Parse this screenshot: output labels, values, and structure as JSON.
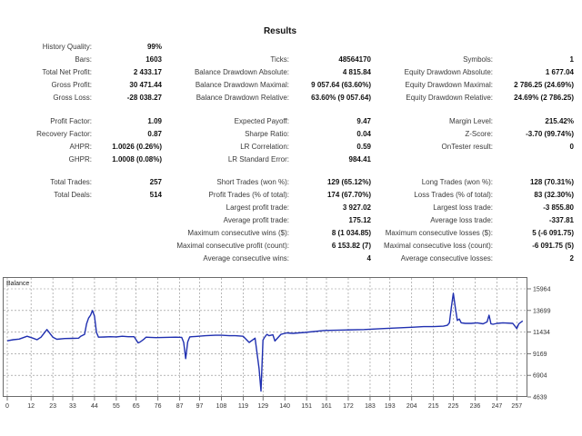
{
  "report": {
    "title": "Results",
    "rows": [
      {
        "label1": "History Quality:",
        "value1": "99%",
        "label2": "",
        "value2": "",
        "label3": "",
        "value3": ""
      },
      {
        "label1": "Bars:",
        "value1": "1603",
        "label2": "Ticks:",
        "value2": "48564170",
        "label3": "Symbols:",
        "value3": "1"
      },
      {
        "label1": "Total Net Profit:",
        "value1": "2 433.17",
        "label2": "Balance Drawdown Absolute:",
        "value2": "4 815.84",
        "label3": "Equity Drawdown Absolute:",
        "value3": "1 677.04"
      },
      {
        "label1": "Gross Profit:",
        "value1": "30 471.44",
        "label2": "Balance Drawdown Maximal:",
        "value2": "9 057.64 (63.60%)",
        "label3": "Equity Drawdown Maximal:",
        "value3": "2 786.25 (24.69%)"
      },
      {
        "label1": "Gross Loss:",
        "value1": "-28 038.27",
        "label2": "Balance Drawdown Relative:",
        "value2": "63.60% (9 057.64)",
        "label3": "Equity Drawdown Relative:",
        "value3": "24.69% (2 786.25)"
      },
      {
        "label1": "Profit Factor:",
        "value1": "1.09",
        "label2": "Expected Payoff:",
        "value2": "9.47",
        "label3": "Margin Level:",
        "value3": "215.42%"
      },
      {
        "label1": "Recovery Factor:",
        "value1": "0.87",
        "label2": "Sharpe Ratio:",
        "value2": "0.04",
        "label3": "Z-Score:",
        "value3": "-3.70 (99.74%)"
      },
      {
        "label1": "AHPR:",
        "value1": "1.0026 (0.26%)",
        "label2": "LR Correlation:",
        "value2": "0.59",
        "label3": "OnTester result:",
        "value3": "0"
      },
      {
        "label1": "GHPR:",
        "value1": "1.0008 (0.08%)",
        "label2": "LR Standard Error:",
        "value2": "984.41",
        "label3": "",
        "value3": ""
      },
      {
        "label1": "Total Trades:",
        "value1": "257",
        "label2": "Short Trades (won %):",
        "value2": "129 (65.12%)",
        "label3": "Long Trades (won %):",
        "value3": "128 (70.31%)"
      },
      {
        "label1": "Total Deals:",
        "value1": "514",
        "label2": "Profit Trades (% of total):",
        "value2": "174 (67.70%)",
        "label3": "Loss Trades (% of total):",
        "value3": "83 (32.30%)"
      },
      {
        "label1": "",
        "value1": "",
        "label2": "Largest profit trade:",
        "value2": "3 927.02",
        "label3": "Largest loss trade:",
        "value3": "-3 855.80"
      },
      {
        "label1": "",
        "value1": "",
        "label2": "Average profit trade:",
        "value2": "175.12",
        "label3": "Average loss trade:",
        "value3": "-337.81"
      },
      {
        "label1": "",
        "value1": "",
        "label2": "Maximum consecutive wins ($):",
        "value2": "8 (1 034.85)",
        "label3": "Maximum consecutive losses ($):",
        "value3": "5 (-6 091.75)"
      },
      {
        "label1": "",
        "value1": "",
        "label2": "Maximal consecutive profit (count):",
        "value2": "6 153.82 (7)",
        "label3": "Maximal consecutive loss (count):",
        "value3": "-6 091.75 (5)"
      },
      {
        "label1": "",
        "value1": "",
        "label2": "Average consecutive wins:",
        "value2": "4",
        "label3": "Average consecutive losses:",
        "value3": "2"
      }
    ]
  },
  "chart_data": {
    "type": "line",
    "legend": "Balance",
    "xticks": [
      "0",
      "12",
      "23",
      "33",
      "44",
      "55",
      "65",
      "76",
      "87",
      "97",
      "108",
      "119",
      "129",
      "140",
      "151",
      "161",
      "172",
      "183",
      "193",
      "204",
      "215",
      "225",
      "236",
      "247",
      "257"
    ],
    "yticks": [
      "15964",
      "13699",
      "11434",
      "9169",
      "6904",
      "4639"
    ],
    "ylim": [
      4639,
      17200
    ],
    "xlim": [
      0,
      261
    ],
    "line_color": "#1f2fb0",
    "series": [
      {
        "x": [
          0,
          3,
          6,
          10,
          13,
          15,
          17,
          20,
          23,
          25,
          29,
          33,
          36,
          37,
          39,
          40,
          41,
          42,
          43,
          44,
          45,
          46,
          49,
          52,
          55,
          58,
          61,
          64,
          66,
          67,
          69,
          70,
          72,
          75,
          80,
          85,
          88,
          89,
          90,
          91,
          92,
          93,
          95,
          100,
          105,
          108,
          112,
          115,
          119,
          122,
          125,
          127,
          128,
          129,
          130,
          131,
          132,
          133,
          134,
          135,
          138,
          141,
          144,
          150,
          160,
          170,
          180,
          190,
          200,
          205,
          210,
          215,
          220,
          222,
          223,
          224,
          225,
          226,
          227,
          228,
          229,
          231,
          234,
          237,
          240,
          242,
          243,
          244,
          245,
          247,
          250,
          255,
          257,
          258,
          260
        ],
        "y": [
          10520,
          10630,
          10700,
          11000,
          10800,
          10630,
          10900,
          11700,
          10900,
          10680,
          10760,
          10780,
          10800,
          11000,
          11200,
          12300,
          12900,
          13200,
          13700,
          13100,
          11400,
          10900,
          10920,
          10950,
          10930,
          11000,
          10950,
          10950,
          10300,
          10400,
          10700,
          10900,
          10880,
          10850,
          10880,
          10900,
          10880,
          10350,
          8650,
          10400,
          10920,
          10950,
          10980,
          11050,
          11100,
          11100,
          11050,
          11050,
          11000,
          10350,
          10800,
          7600,
          5250,
          10600,
          10950,
          11200,
          11050,
          11100,
          11150,
          10500,
          11200,
          11350,
          11300,
          11400,
          11600,
          11650,
          11700,
          11800,
          11900,
          11950,
          12000,
          12000,
          12050,
          12150,
          12400,
          14000,
          15500,
          14000,
          12650,
          12800,
          12400,
          12350,
          12350,
          12400,
          12300,
          12500,
          13200,
          12300,
          12250,
          12350,
          12400,
          12350,
          11800,
          12300,
          12600
        ]
      }
    ]
  }
}
